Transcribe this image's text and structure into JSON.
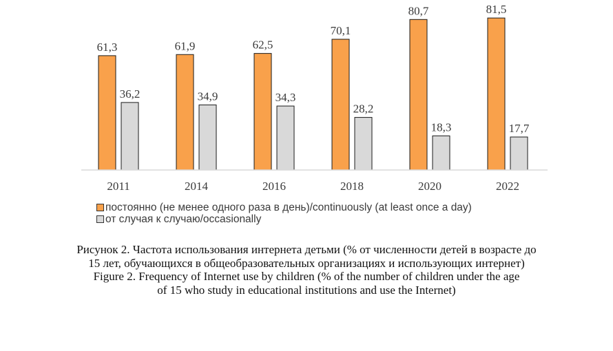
{
  "chart_data": {
    "type": "bar",
    "categories": [
      "2011",
      "2014",
      "2016",
      "2018",
      "2020",
      "2022"
    ],
    "series": [
      {
        "name": "постоянно (не менее одного раза в день)/continuously (at least once a day)",
        "color": "#f9a14b",
        "values": [
          61.3,
          61.9,
          62.5,
          70.1,
          80.7,
          81.5
        ],
        "labels": [
          "61,3",
          "61,9",
          "62,5",
          "70,1",
          "80,7",
          "81,5"
        ]
      },
      {
        "name": "от случая к случаю/occasionally",
        "color": "#d9d9d9",
        "values": [
          36.2,
          34.9,
          34.3,
          28.2,
          18.3,
          17.7
        ],
        "labels": [
          "36,2",
          "34,9",
          "34,3",
          "28,2",
          "18,3",
          "17,7"
        ]
      }
    ],
    "ylim": [
      0,
      100
    ],
    "grid": false,
    "legend_position": "bottom-left"
  },
  "caption": {
    "line1": "Рисунок 2. Частота использования интернета детьми (% от численности детей в возрасте до",
    "line2": "15 лет, обучающихся в общеобразовательных организациях и использующих интернет)",
    "line3": "Figure 2. Frequency of Internet use by children (% of the number of children under the age",
    "line4": "of 15 who study in educational institutions and use the Internet)"
  }
}
